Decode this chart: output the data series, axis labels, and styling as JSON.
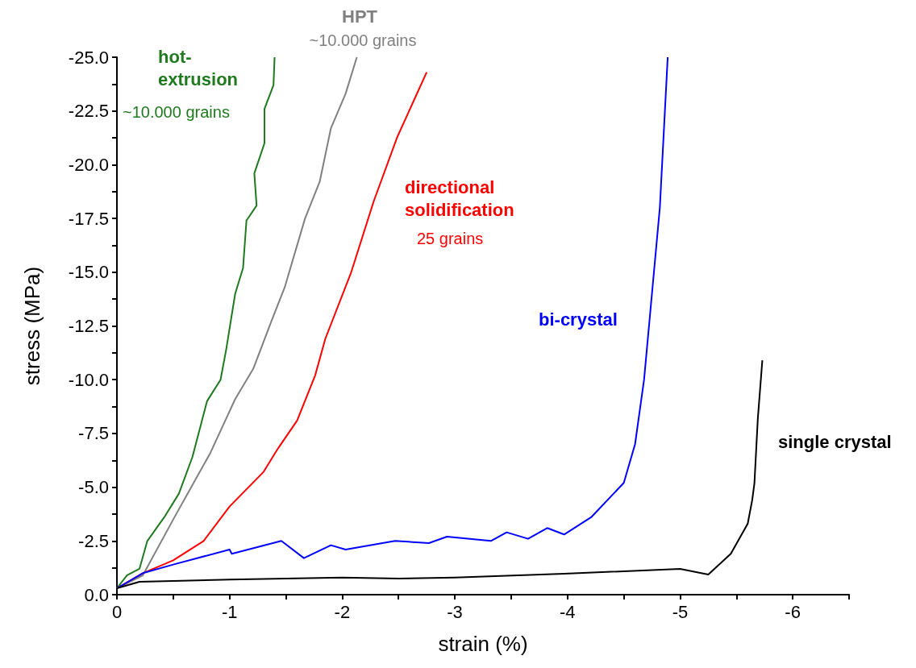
{
  "chart_data": {
    "type": "line",
    "xlabel": "strain (%)",
    "ylabel": "stress (MPa)",
    "xlim": [
      0,
      -6.5
    ],
    "ylim": [
      0,
      -25
    ],
    "xticks": [
      0,
      {
        "value": -0.5,
        "label": null
      },
      -1,
      {
        "value": -1.5,
        "label": null
      },
      -2,
      {
        "value": -2.5,
        "label": null
      },
      -3,
      {
        "value": -3.5,
        "label": null
      },
      -4,
      {
        "value": -4.5,
        "label": null
      },
      -5,
      {
        "value": -5.5,
        "label": null
      },
      -6,
      {
        "value": -6.5,
        "label": null
      }
    ],
    "yticks": [
      {
        "value": 0,
        "label": "0.0"
      },
      {
        "value": -1.25,
        "label": null
      },
      {
        "value": -2.5,
        "label": "-2.5"
      },
      {
        "value": -3.75,
        "label": null
      },
      {
        "value": -5,
        "label": "-5.0"
      },
      {
        "value": -6.25,
        "label": null
      },
      {
        "value": -7.5,
        "label": "-7.5"
      },
      {
        "value": -8.75,
        "label": null
      },
      {
        "value": -10,
        "label": "-10.0"
      },
      {
        "value": -11.25,
        "label": null
      },
      {
        "value": -12.5,
        "label": "-12.5"
      },
      {
        "value": -13.75,
        "label": null
      },
      {
        "value": -15,
        "label": "-15.0"
      },
      {
        "value": -16.25,
        "label": null
      },
      {
        "value": -17.5,
        "label": "-17.5"
      },
      {
        "value": -18.75,
        "label": null
      },
      {
        "value": -20,
        "label": "-20.0"
      },
      {
        "value": -21.25,
        "label": null
      },
      {
        "value": -22.5,
        "label": "-22.5"
      },
      {
        "value": -23.75,
        "label": null
      },
      {
        "value": -25,
        "label": "-25.0"
      }
    ],
    "series": [
      {
        "name": "hot-\nextrusion",
        "color": "#1f7a1f",
        "x": [
          0,
          -0.09,
          -0.2,
          -0.27,
          -0.42,
          -0.55,
          -0.67,
          -0.8,
          -0.92,
          -0.97,
          -1.05,
          -1.12,
          -1.15,
          -1.24,
          -1.22,
          -1.31,
          -1.31,
          -1.39,
          -1.4
        ],
        "values": [
          -0.3,
          -0.9,
          -1.2,
          -2.5,
          -3.6,
          -4.7,
          -6.4,
          -9.0,
          -10.0,
          -11.4,
          -14.0,
          -15.2,
          -17.4,
          -18.1,
          -19.6,
          -21.0,
          -22.6,
          -23.7,
          -25.0
        ]
      },
      {
        "name": "HPT",
        "color": "#808080",
        "x": [
          0,
          -0.23,
          -0.5,
          -0.67,
          -0.83,
          -1.05,
          -1.21,
          -1.37,
          -1.49,
          -1.67,
          -1.8,
          -1.9,
          -2.03,
          -2.13
        ],
        "values": [
          -0.3,
          -0.9,
          -3.5,
          -5.1,
          -6.6,
          -9.1,
          -10.5,
          -12.7,
          -14.3,
          -17.5,
          -19.2,
          -21.7,
          -23.3,
          -25.0
        ]
      },
      {
        "name": "directional\nsolidification",
        "color": "#ff0000",
        "x": [
          0,
          -0.23,
          -0.5,
          -0.77,
          -1.0,
          -1.3,
          -1.43,
          -1.6,
          -1.76,
          -1.85,
          -2.08,
          -2.28,
          -2.49,
          -2.75
        ],
        "values": [
          -0.3,
          -1.0,
          -1.6,
          -2.5,
          -4.1,
          -5.7,
          -6.8,
          -8.1,
          -10.2,
          -11.9,
          -15.0,
          -18.3,
          -21.3,
          -24.3
        ]
      },
      {
        "name": "bi-crystal",
        "color": "#0000ff",
        "x": [
          0,
          -0.23,
          -0.5,
          -1.0,
          -1.02,
          -1.46,
          -1.66,
          -1.9,
          -2.03,
          -2.47,
          -2.77,
          -2.93,
          -3.32,
          -3.46,
          -3.65,
          -3.82,
          -3.97,
          -4.21,
          -4.5,
          -4.6,
          -4.68,
          -4.75,
          -4.82,
          -4.86,
          -4.89
        ],
        "values": [
          -0.3,
          -1.0,
          -1.4,
          -2.1,
          -1.9,
          -2.5,
          -1.7,
          -2.3,
          -2.1,
          -2.5,
          -2.4,
          -2.7,
          -2.5,
          -2.9,
          -2.6,
          -3.1,
          -2.8,
          -3.6,
          -5.2,
          -7.0,
          -10.0,
          -14.0,
          -18.0,
          -22.0,
          -25.0
        ]
      },
      {
        "name": "single crystal",
        "color": "#000000",
        "x": [
          0,
          -0.2,
          -1.0,
          -2.0,
          -2.5,
          -3.0,
          -3.97,
          -5.0,
          -5.25,
          -5.45,
          -5.6,
          -5.64,
          -5.66,
          -5.69,
          -5.73
        ],
        "values": [
          -0.3,
          -0.6,
          -0.7,
          -0.8,
          -0.75,
          -0.8,
          -0.97,
          -1.2,
          -0.94,
          -1.9,
          -3.3,
          -4.4,
          -5.2,
          -8.2,
          -10.9
        ]
      }
    ],
    "annotations": [
      "~10.000 grains",
      "~10.000 grains",
      "25 grains"
    ]
  }
}
